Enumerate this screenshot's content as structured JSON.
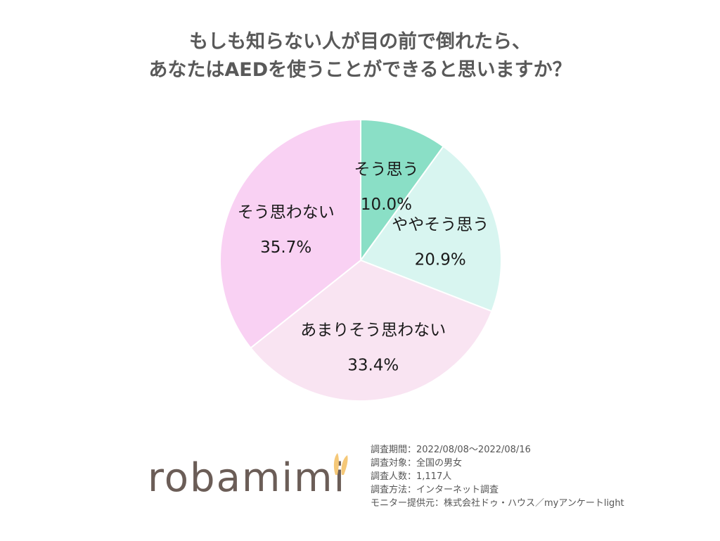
{
  "chart_data": {
    "type": "pie",
    "title_lines": [
      "もしも知らない人が目の前で倒れたら、",
      "あなたはAEDを使うことができると思いますか？"
    ],
    "start": "12 o'clock, clockwise",
    "slices": [
      {
        "label": "そう思う",
        "value": 10.0,
        "value_label": "10.0%",
        "color": "#8adfc6"
      },
      {
        "label": "ややそう思う",
        "value": 20.9,
        "value_label": "20.9%",
        "color": "#d8f5f0"
      },
      {
        "label": "あまりそう思わない",
        "value": 33.4,
        "value_label": "33.4%",
        "color": "#f9e4f2"
      },
      {
        "label": "そう思わない",
        "value": 35.7,
        "value_label": "35.7%",
        "color": "#f9d1f3"
      }
    ]
  },
  "brand": {
    "name": "robamimi",
    "ear_color": "#f5c878"
  },
  "survey_info": [
    "調査期間：2022/08/08～2022/08/16",
    "調査対象：全国の男女",
    "調査人数：1,117人",
    "調査方法：インターネット調査",
    "モニター提供元：株式会社ドゥ・ハウス／myアンケートlight"
  ]
}
